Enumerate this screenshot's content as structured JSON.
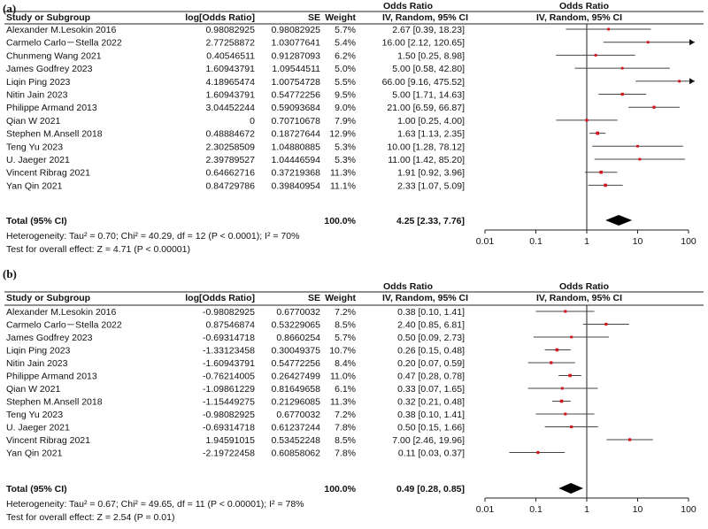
{
  "chart_data": [
    {
      "type": "forest",
      "panel_label": "(a)",
      "header": {
        "title_left": "Odds Ratio",
        "title_right": "Odds Ratio",
        "col_study": "Study or Subgroup",
        "col_log": "log[Odds Ratio]",
        "col_se": "SE",
        "col_weight": "Weight",
        "col_ci": "IV, Random, 95% CI",
        "col_plot": "IV, Random, 95% CI"
      },
      "x_axis": {
        "scale": "log",
        "range": [
          0.01,
          100
        ],
        "ticks": [
          0.01,
          0.1,
          1,
          10,
          100
        ],
        "tick_labels": [
          "0.01",
          "0.1",
          "1",
          "10",
          "100"
        ]
      },
      "studies": [
        {
          "name": "Alexander M.Lesokin 2016",
          "log_or": "0.98082925",
          "se": "0.98082925",
          "weight": "5.7%",
          "ci_text": "2.67 [0.39, 18.23]",
          "or": 2.67,
          "lo": 0.39,
          "hi": 18.23
        },
        {
          "name": "Carmelo Carlo－Stella 2022",
          "log_or": "2.77258872",
          "se": "1.03077641",
          "weight": "5.4%",
          "ci_text": "16.00 [2.12, 120.65]",
          "or": 16.0,
          "lo": 2.12,
          "hi": 120.65
        },
        {
          "name": "Chunmeng Wang 2021",
          "log_or": "0.40546511",
          "se": "0.91287093",
          "weight": "6.2%",
          "ci_text": "1.50 [0.25, 8.98]",
          "or": 1.5,
          "lo": 0.25,
          "hi": 8.98
        },
        {
          "name": "James Godfrey 2023",
          "log_or": "1.60943791",
          "se": "1.09544511",
          "weight": "5.0%",
          "ci_text": "5.00 [0.58, 42.80]",
          "or": 5.0,
          "lo": 0.58,
          "hi": 42.8
        },
        {
          "name": "Liqin Ping 2023",
          "log_or": "4.18965474",
          "se": "1.00754728",
          "weight": "5.5%",
          "ci_text": "66.00 [9.16, 475.52]",
          "or": 66.0,
          "lo": 9.16,
          "hi": 475.52
        },
        {
          "name": "Nitin Jain 2023",
          "log_or": "1.60943791",
          "se": "0.54772256",
          "weight": "9.5%",
          "ci_text": "5.00 [1.71, 14.63]",
          "or": 5.0,
          "lo": 1.71,
          "hi": 14.63
        },
        {
          "name": "Philippe Armand 2013",
          "log_or": "3.04452244",
          "se": "0.59093684",
          "weight": "9.0%",
          "ci_text": "21.00 [6.59, 66.87]",
          "or": 21.0,
          "lo": 6.59,
          "hi": 66.87
        },
        {
          "name": "Qian W 2021",
          "log_or": "0",
          "se": "0.70710678",
          "weight": "7.9%",
          "ci_text": "1.00 [0.25, 4.00]",
          "or": 1.0,
          "lo": 0.25,
          "hi": 4.0
        },
        {
          "name": "Stephen M.Ansell 2018",
          "log_or": "0.48884672",
          "se": "0.18727644",
          "weight": "12.9%",
          "ci_text": "1.63 [1.13, 2.35]",
          "or": 1.63,
          "lo": 1.13,
          "hi": 2.35
        },
        {
          "name": "Teng Yu 2023",
          "log_or": "2.30258509",
          "se": "1.04880885",
          "weight": "5.3%",
          "ci_text": "10.00 [1.28, 78.12]",
          "or": 10.0,
          "lo": 1.28,
          "hi": 78.12
        },
        {
          "name": "U. Jaeger 2021",
          "log_or": "2.39789527",
          "se": "1.04446594",
          "weight": "5.3%",
          "ci_text": "11.00 [1.42, 85.20]",
          "or": 11.0,
          "lo": 1.42,
          "hi": 85.2
        },
        {
          "name": "Vincent Ribrag 2021",
          "log_or": "0.64662716",
          "se": "0.37219368",
          "weight": "11.3%",
          "ci_text": "1.91 [0.92, 3.96]",
          "or": 1.91,
          "lo": 0.92,
          "hi": 3.96
        },
        {
          "name": "Yan Qin 2021",
          "log_or": "0.84729786",
          "se": "0.39840954",
          "weight": "11.1%",
          "ci_text": "2.33 [1.07, 5.09]",
          "or": 2.33,
          "lo": 1.07,
          "hi": 5.09
        }
      ],
      "total": {
        "label": "Total (95% CI)",
        "weight": "100.0%",
        "ci_text": "4.25 [2.33, 7.76]",
        "or": 4.25,
        "lo": 2.33,
        "hi": 7.76
      },
      "heterogeneity": "Heterogeneity: Tau² = 0.70; Chi² = 40.29, df = 12 (P < 0.0001); I² = 70%",
      "overall_effect": "Test for overall effect: Z = 4.71 (P < 0.00001)"
    },
    {
      "type": "forest",
      "panel_label": "(b)",
      "header": {
        "title_left": "Odds Ratio",
        "title_right": "Odds Ratio",
        "col_study": "Study or Subgroup",
        "col_log": "log[Odds Ratio]",
        "col_se": "SE",
        "col_weight": "Weight",
        "col_ci": "IV, Random, 95% CI",
        "col_plot": "IV, Random, 95% CI"
      },
      "x_axis": {
        "scale": "log",
        "range": [
          0.01,
          100
        ],
        "ticks": [
          0.01,
          0.1,
          1,
          10,
          100
        ],
        "tick_labels": [
          "0.01",
          "0.1",
          "1",
          "10",
          "100"
        ]
      },
      "studies": [
        {
          "name": "Alexander M.Lesokin 2016",
          "log_or": "-0.98082925",
          "se": "0.6770032",
          "weight": "7.2%",
          "ci_text": "0.38 [0.10, 1.41]",
          "or": 0.38,
          "lo": 0.1,
          "hi": 1.41
        },
        {
          "name": "Carmelo Carlo－Stella 2022",
          "log_or": "0.87546874",
          "se": "0.53229065",
          "weight": "8.5%",
          "ci_text": "2.40 [0.85, 6.81]",
          "or": 2.4,
          "lo": 0.85,
          "hi": 6.81
        },
        {
          "name": "James Godfrey 2023",
          "log_or": "-0.69314718",
          "se": "0.8660254",
          "weight": "5.7%",
          "ci_text": "0.50 [0.09, 2.73]",
          "or": 0.5,
          "lo": 0.09,
          "hi": 2.73
        },
        {
          "name": "Liqin Ping 2023",
          "log_or": "-1.33123458",
          "se": "0.30049375",
          "weight": "10.7%",
          "ci_text": "0.26 [0.15, 0.48]",
          "or": 0.26,
          "lo": 0.15,
          "hi": 0.48
        },
        {
          "name": "Nitin Jain 2023",
          "log_or": "-1.60943791",
          "se": "0.54772256",
          "weight": "8.4%",
          "ci_text": "0.20 [0.07, 0.59]",
          "or": 0.2,
          "lo": 0.07,
          "hi": 0.59
        },
        {
          "name": "Philippe Armand 2013",
          "log_or": "-0.76214005",
          "se": "0.26427499",
          "weight": "11.0%",
          "ci_text": "0.47 [0.28, 0.78]",
          "or": 0.47,
          "lo": 0.28,
          "hi": 0.78
        },
        {
          "name": "Qian W 2021",
          "log_or": "-1.09861229",
          "se": "0.81649658",
          "weight": "6.1%",
          "ci_text": "0.33 [0.07, 1.65]",
          "or": 0.33,
          "lo": 0.07,
          "hi": 1.65
        },
        {
          "name": "Stephen M.Ansell 2018",
          "log_or": "-1.15449275",
          "se": "0.21296085",
          "weight": "11.3%",
          "ci_text": "0.32 [0.21, 0.48]",
          "or": 0.32,
          "lo": 0.21,
          "hi": 0.48
        },
        {
          "name": "Teng Yu 2023",
          "log_or": "-0.98082925",
          "se": "0.6770032",
          "weight": "7.2%",
          "ci_text": "0.38 [0.10, 1.41]",
          "or": 0.38,
          "lo": 0.1,
          "hi": 1.41
        },
        {
          "name": "U. Jaeger 2021",
          "log_or": "-0.69314718",
          "se": "0.61237244",
          "weight": "7.8%",
          "ci_text": "0.50 [0.15, 1.66]",
          "or": 0.5,
          "lo": 0.15,
          "hi": 1.66
        },
        {
          "name": "Vincent Ribrag 2021",
          "log_or": "1.94591015",
          "se": "0.53452248",
          "weight": "8.5%",
          "ci_text": "7.00 [2.46, 19.96]",
          "or": 7.0,
          "lo": 2.46,
          "hi": 19.96
        },
        {
          "name": "Yan Qin 2021",
          "log_or": "-2.19722458",
          "se": "0.60858062",
          "weight": "7.8%",
          "ci_text": "0.11 [0.03, 0.37]",
          "or": 0.11,
          "lo": 0.03,
          "hi": 0.37
        }
      ],
      "total": {
        "label": "Total (95% CI)",
        "weight": "100.0%",
        "ci_text": "0.49 [0.28, 0.85]",
        "or": 0.49,
        "lo": 0.28,
        "hi": 0.85
      },
      "heterogeneity": "Heterogeneity: Tau² = 0.67; Chi² = 49.65, df = 11 (P < 0.00001); I² = 78%",
      "overall_effect": "Test for overall effect: Z = 2.54 (P = 0.01)"
    }
  ]
}
